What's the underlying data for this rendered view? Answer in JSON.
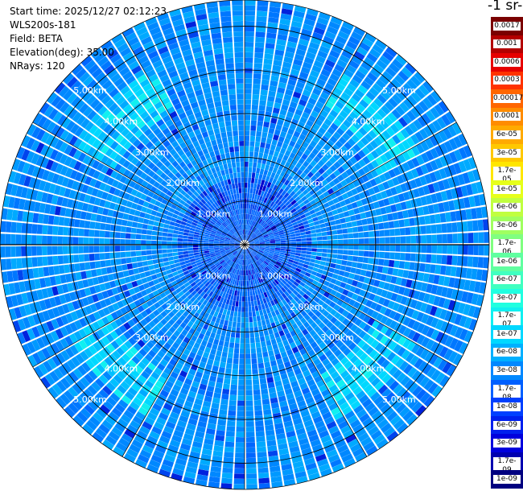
{
  "info": {
    "start_time": "Start time: 2025/12/27 02:12:23",
    "instrument": "WLS200s-181",
    "field": "Field: BETA",
    "elevation": "Elevation(deg): 35.00",
    "nrays": "NRays: 120"
  },
  "colorbar": {
    "title": "-1 sr-",
    "labels": [
      "0.0017",
      "0.001",
      "0.0006",
      "0.0003",
      "0.00017",
      "0.0001",
      "6e-05",
      "3e-05",
      "1.7e-05",
      "1e-05",
      "6e-06",
      "3e-06",
      "1.7e-06",
      "1e-06",
      "6e-07",
      "3e-07",
      "1.7e-07",
      "1e-07",
      "6e-08",
      "3e-08",
      "1.7e-08",
      "1e-08",
      "6e-09",
      "3e-09",
      "1.7e-09",
      "1e-09"
    ],
    "colors": [
      "#7a0000",
      "#b30000",
      "#e60000",
      "#ff3300",
      "#ff6600",
      "#ff8c00",
      "#ffaa00",
      "#ffc800",
      "#ffe600",
      "#e6ff1a",
      "#c0ff40",
      "#a0ff60",
      "#80ff80",
      "#60ffa0",
      "#40ffc0",
      "#20ffe0",
      "#10f0f0",
      "#00d8ff",
      "#00b0ff",
      "#0088ff",
      "#0060ff",
      "#0040ff",
      "#0020ee",
      "#0000dd",
      "#0000b0",
      "#000080"
    ]
  },
  "chart_data": {
    "type": "polar-ppi",
    "field": "BETA",
    "elevation_deg": 35.0,
    "n_rays": 120,
    "range_ring_labels": [
      "1.00km",
      "2.00km",
      "3.00km",
      "4.00km",
      "5.00km"
    ],
    "range_rings_km": [
      1.0,
      2.0,
      3.0,
      4.0,
      5.0
    ],
    "max_range_km": 5.6,
    "color_scale": "log",
    "value_range": [
      1e-09,
      0.0017
    ]
  }
}
